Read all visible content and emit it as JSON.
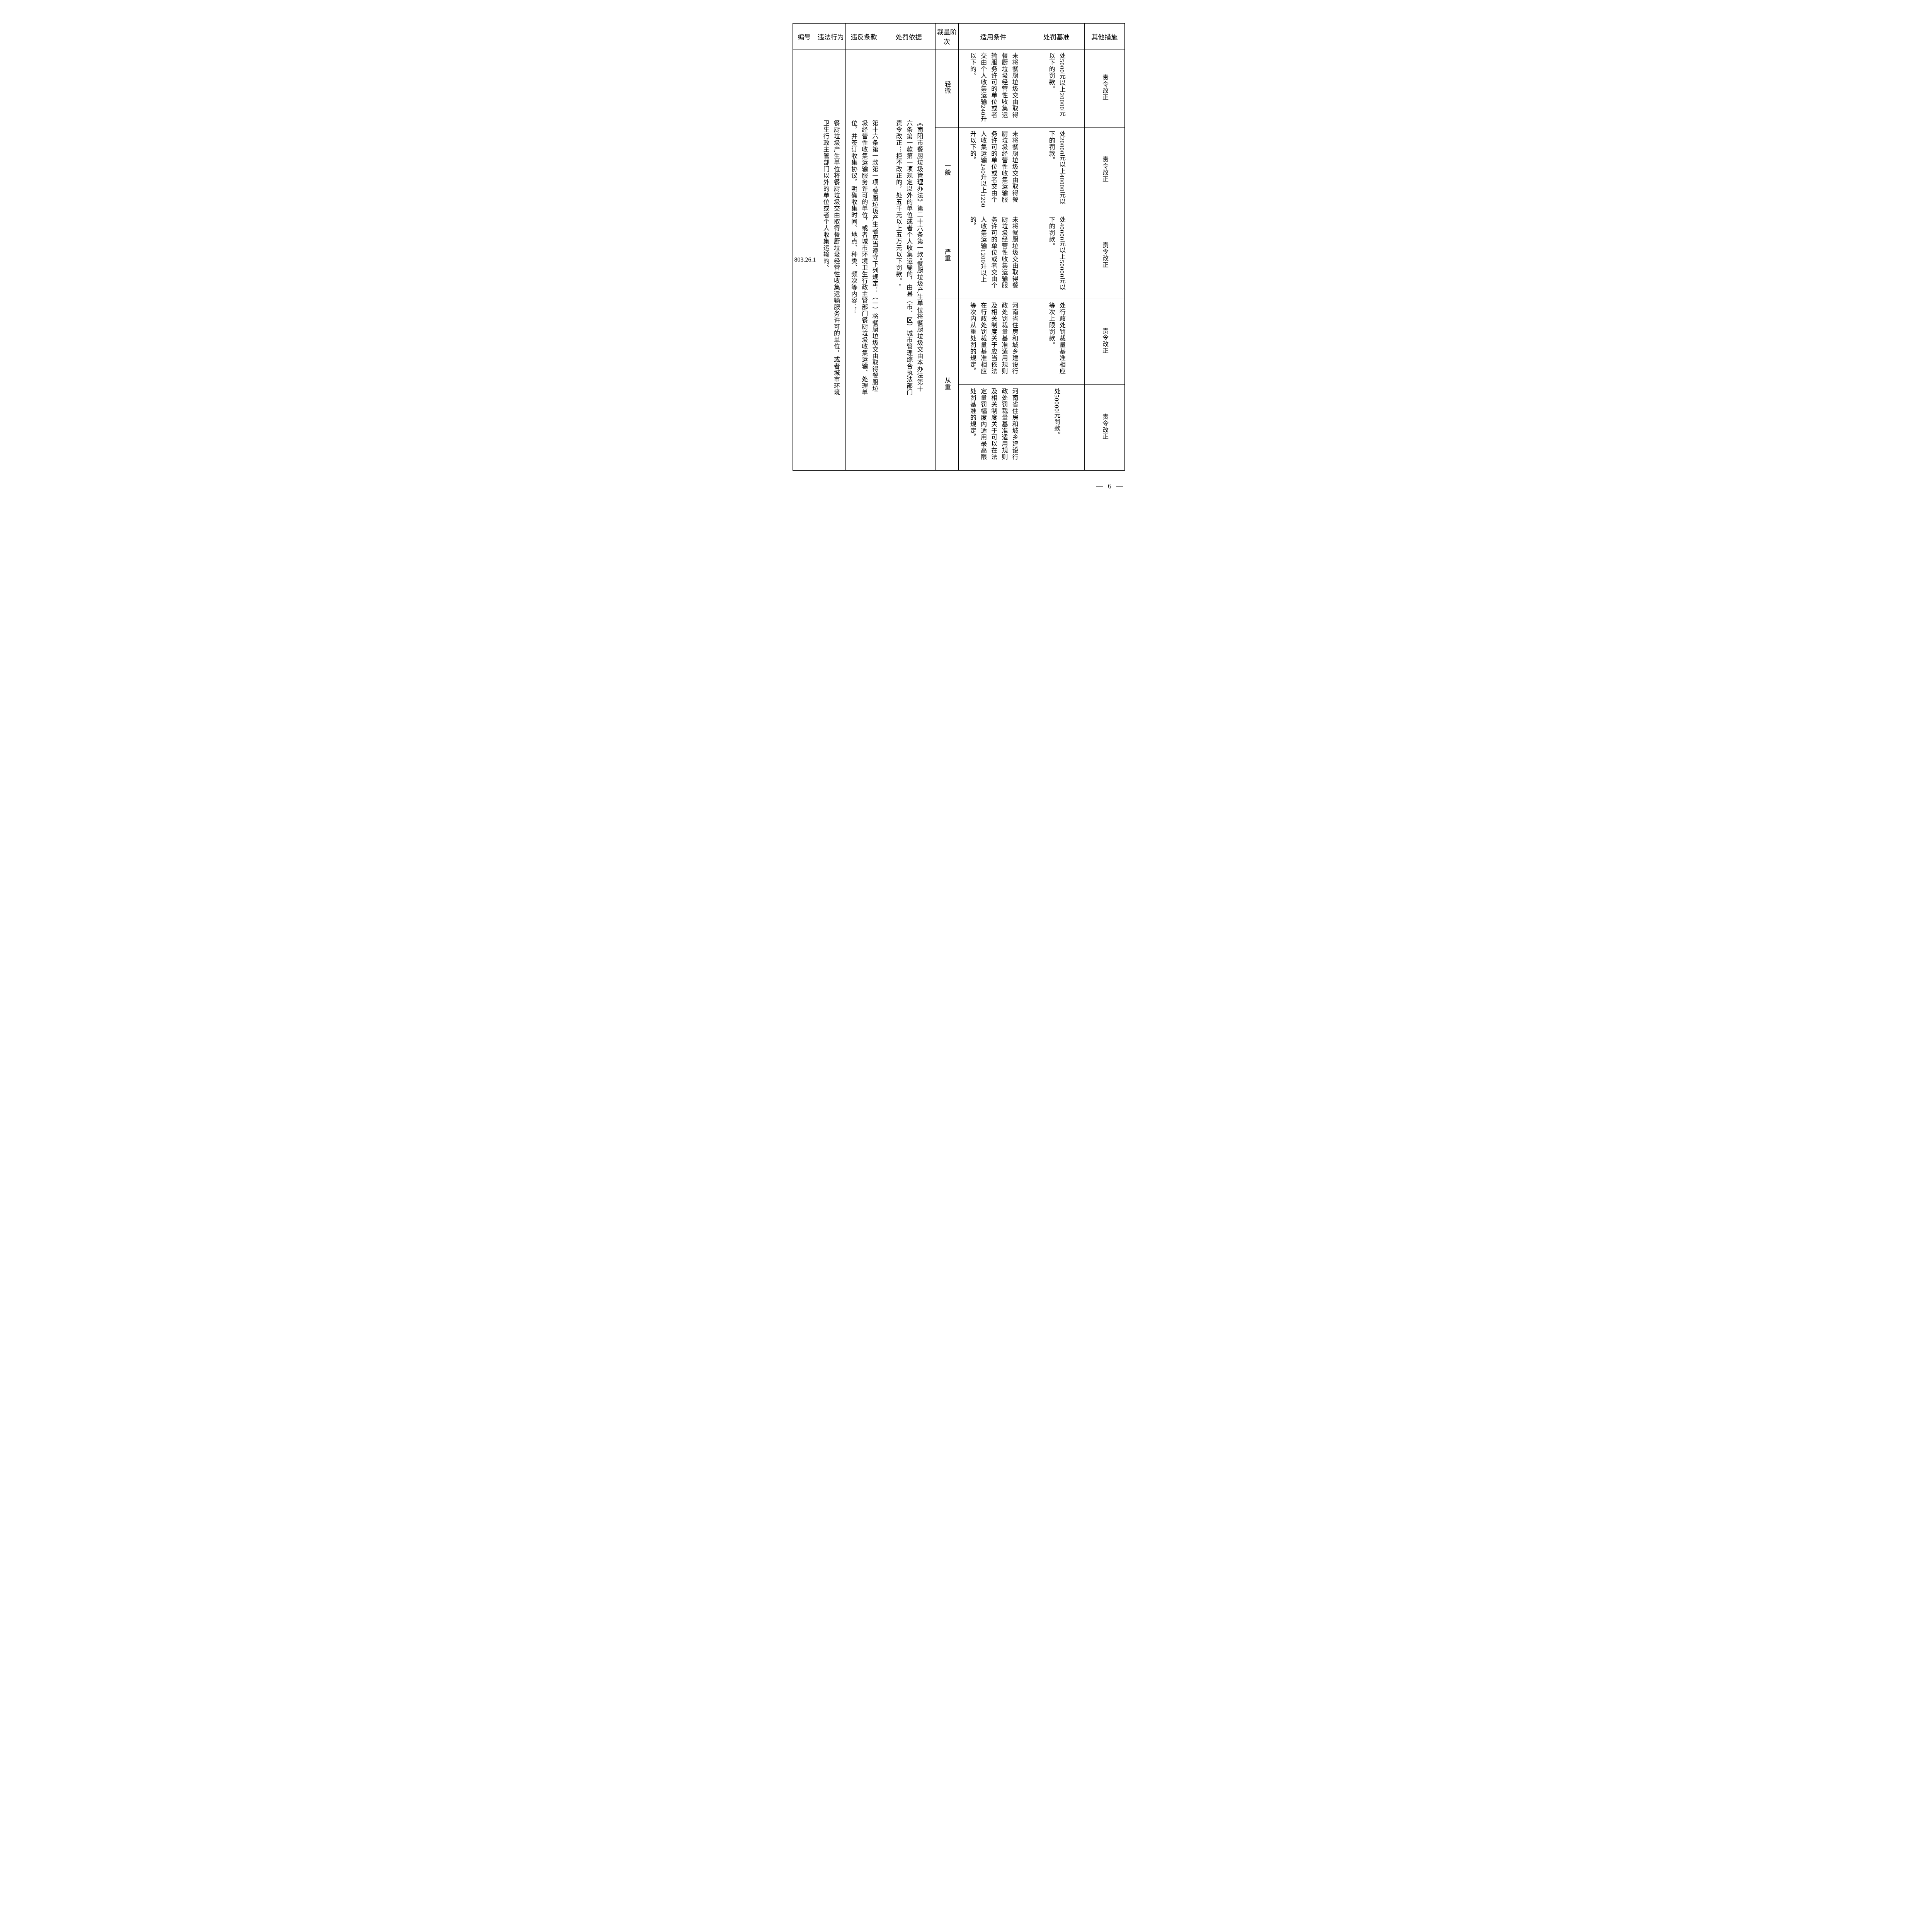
{
  "headers": {
    "c1": "编号",
    "c2": "违法行为",
    "c3": "违反条款",
    "c4": "处罚依据",
    "c5": "裁量阶次",
    "c6": "适用条件",
    "c7": "处罚基准",
    "c8": "其他措施"
  },
  "rowid": "803.26.1",
  "violation": "餐厨垃圾产生单位将餐厨垃圾交由取得餐厨垃圾经营性收集运输服务许可的单位，或者城市环境卫生行政主管部门以外的单位或者个人收集运输的。",
  "clause": "第十六条第一款第一项\"餐厨垃圾产生者应当遵守下列规定：（一）将餐厨垃圾交由取得餐厨垃圾经营性收集运输服务许可的单位，或者城市环境卫生行政主管部门餐厨垃圾收集运输、处理单位，并签订收集协议，明确收集时间、地点、种类、频次等内容；\"",
  "basis": "《南阳市餐厨垃圾管理办法》第二十六条第一款\"餐厨垃圾产生单位将餐厨垃圾交由本办法第十六条第一款第一项规定以外的单位或者个人收集运输的，由县（市、区）城市管理综合执法部门责令改正；拒不改正的，处五千元以上五万元以下罚款。\"",
  "tiers": [
    {
      "level": "轻微",
      "cond": "未将餐厨垃圾交由取得餐厨垃圾经营性收集运输服务许可的单位或者交由个人收集运输240升以下的。",
      "pen": "处5000元以上20000元以下的罚款。",
      "other": "责令改正"
    },
    {
      "level": "一般",
      "cond": "未将餐厨垃圾交由取得餐厨垃圾经营性收集运输服务许可的单位或者交由个人收集运输240升以上1200升以下的。",
      "pen": "处20000元以上40000元以下的罚款。",
      "other": "责令改正"
    },
    {
      "level": "严重",
      "cond": "未将餐厨垃圾交由取得餐厨垃圾经营性收集运输服务许可的单位或者交由个人收集运输1200升以上的。",
      "pen": "处40000元以上50000元以下的罚款。",
      "other": "责令改正"
    },
    {
      "level": "从重",
      "cond1": "河南省住房和城乡建设行政处罚裁量基准适用规则及相关制度关于应当依法在行政处罚裁量基准相应等次内从重处罚的规定。",
      "pen1": "处行政处罚裁量基准相应等次上限罚款。",
      "other1": "责令改正",
      "cond2": "河南省住房和城乡建设行政处罚裁量基准适用规则及相关制度关于可以在法定量罚幅度内适用最高限处罚基准的规定。",
      "pen2": "处50000元罚款。",
      "other2": "责令改正"
    }
  ],
  "pagenum": "— 6 —"
}
